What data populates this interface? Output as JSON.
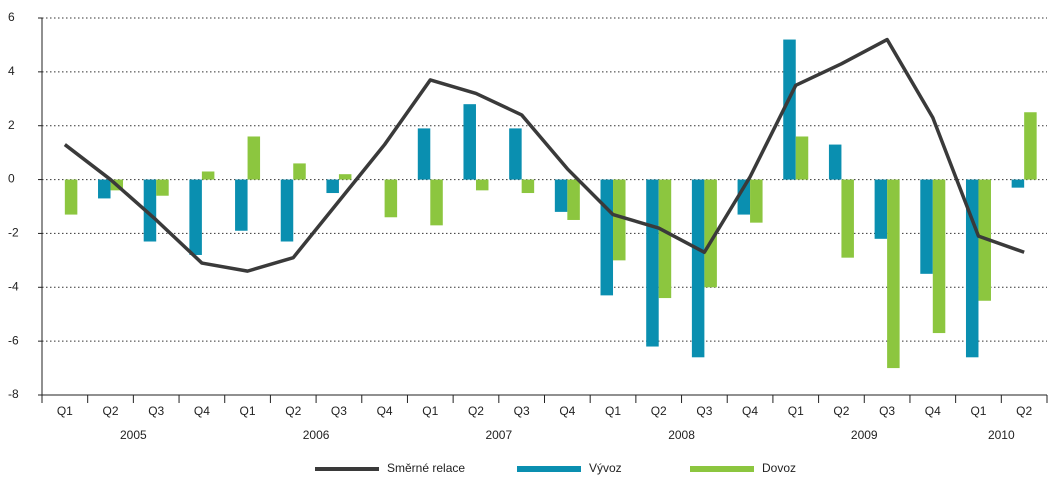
{
  "chart_data": {
    "type": "bar-line",
    "categories": [
      "Q1",
      "Q2",
      "Q3",
      "Q4",
      "Q1",
      "Q2",
      "Q3",
      "Q4",
      "Q1",
      "Q2",
      "Q3",
      "Q4",
      "Q1",
      "Q2",
      "Q3",
      "Q4",
      "Q1",
      "Q2",
      "Q3",
      "Q4",
      "Q1",
      "Q2"
    ],
    "category_groups": [
      "2005",
      "2006",
      "2007",
      "2008",
      "2009",
      "2010"
    ],
    "series": [
      {
        "name": "Směrné relace",
        "type": "line",
        "color": "#3a3a3a",
        "values": [
          1.3,
          0.0,
          -1.5,
          -3.1,
          -3.4,
          -2.9,
          -0.8,
          1.3,
          3.7,
          3.2,
          2.4,
          0.4,
          -1.3,
          -1.8,
          -2.7,
          0.1,
          3.5,
          4.3,
          5.2,
          2.3,
          -2.1,
          -2.7
        ]
      },
      {
        "name": "Vývoz",
        "type": "bar",
        "color": "#0a8fb0",
        "values": [
          0,
          -0.7,
          -2.3,
          -2.8,
          -1.9,
          -2.3,
          -0.5,
          0,
          1.9,
          2.8,
          1.9,
          -1.2,
          -4.3,
          -6.2,
          -6.6,
          -1.3,
          5.2,
          1.3,
          -2.2,
          -3.5,
          -6.6,
          -0.3
        ]
      },
      {
        "name": "Dovoz",
        "type": "bar",
        "color": "#8cc63f",
        "values": [
          -1.3,
          -0.4,
          -0.6,
          0.3,
          1.6,
          0.6,
          0.2,
          -1.4,
          -1.7,
          -0.4,
          -0.5,
          -1.5,
          -3.0,
          -4.4,
          -4.0,
          -1.6,
          1.6,
          -2.9,
          -7.0,
          -5.7,
          -4.5,
          2.5
        ]
      }
    ],
    "ylim": [
      -8,
      6
    ],
    "yticks": [
      -8,
      -6,
      -4,
      -2,
      0,
      2,
      4,
      6
    ],
    "grid": true,
    "legend": "bottom"
  }
}
